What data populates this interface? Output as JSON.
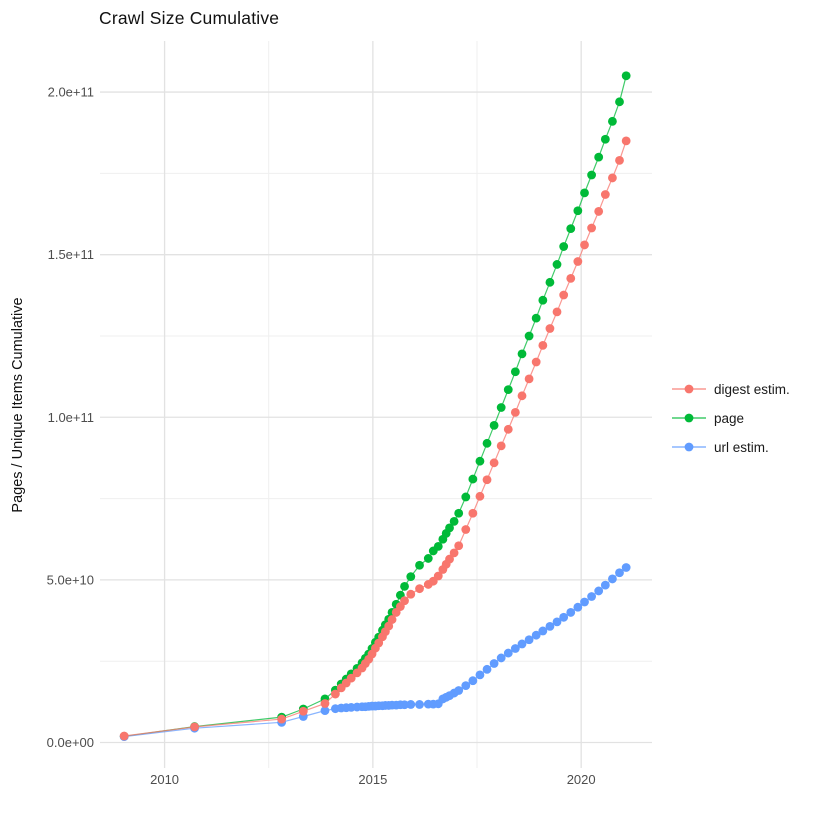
{
  "chart_data": {
    "type": "line",
    "title": "Crawl Size Cumulative",
    "xlabel": "",
    "ylabel": "Pages / Unique Items Cumulative",
    "values_unit": "pages (billions, 1e9)",
    "grid": true,
    "x_axis": {
      "major_ticks": [
        {
          "value": 2010,
          "label": "2010"
        },
        {
          "value": 2015,
          "label": "2015"
        },
        {
          "value": 2020,
          "label": "2020"
        }
      ],
      "minor_ticks": [
        2012.5,
        2017.5
      ],
      "range": [
        2008.45,
        2021.7
      ]
    },
    "y_axis": {
      "major_ticks": [
        {
          "value": 0,
          "label": "0.0e+00"
        },
        {
          "value": 50,
          "label": "5.0e+10"
        },
        {
          "value": 100,
          "label": "1.0e+11"
        },
        {
          "value": 150,
          "label": "1.5e+11"
        },
        {
          "value": 200,
          "label": "2.0e+11"
        }
      ],
      "minor_ticks": [
        25,
        75,
        125,
        175
      ],
      "range": [
        -7.84,
        215.7
      ]
    },
    "legend": {
      "position": "right",
      "entries": [
        {
          "label": "digest estim.",
          "color": "#F8766D"
        },
        {
          "label": "page",
          "color": "#00BA38"
        },
        {
          "label": "url estim.",
          "color": "#619CFF"
        }
      ]
    },
    "series": [
      {
        "name": "page",
        "color": "#00BA38",
        "points": [
          [
            2009.03,
            1.9
          ],
          [
            2010.72,
            4.9
          ],
          [
            2012.81,
            7.8
          ],
          [
            2013.33,
            10.3
          ],
          [
            2013.85,
            13.4
          ],
          [
            2014.1,
            16.1
          ],
          [
            2014.24,
            18.0
          ],
          [
            2014.36,
            19.5
          ],
          [
            2014.48,
            21.1
          ],
          [
            2014.62,
            22.8
          ],
          [
            2014.74,
            24.5
          ],
          [
            2014.82,
            25.9
          ],
          [
            2014.9,
            27.2
          ],
          [
            2014.98,
            28.9
          ],
          [
            2015.06,
            30.8
          ],
          [
            2015.14,
            32.4
          ],
          [
            2015.23,
            34.5
          ],
          [
            2015.3,
            36.2
          ],
          [
            2015.38,
            37.9
          ],
          [
            2015.46,
            40.0
          ],
          [
            2015.56,
            42.5
          ],
          [
            2015.66,
            45.3
          ],
          [
            2015.76,
            48.0
          ],
          [
            2015.91,
            51.0
          ],
          [
            2016.12,
            54.5
          ],
          [
            2016.33,
            56.6
          ],
          [
            2016.45,
            58.9
          ],
          [
            2016.57,
            60.3
          ],
          [
            2016.68,
            62.5
          ],
          [
            2016.76,
            64.3
          ],
          [
            2016.84,
            66.0
          ],
          [
            2016.95,
            68.0
          ],
          [
            2017.06,
            70.5
          ],
          [
            2017.23,
            75.5
          ],
          [
            2017.4,
            81.0
          ],
          [
            2017.57,
            86.5
          ],
          [
            2017.74,
            92.0
          ],
          [
            2017.91,
            97.5
          ],
          [
            2018.08,
            103.0
          ],
          [
            2018.25,
            108.5
          ],
          [
            2018.42,
            114.0
          ],
          [
            2018.58,
            119.5
          ],
          [
            2018.75,
            125.0
          ],
          [
            2018.92,
            130.5
          ],
          [
            2019.08,
            136.0
          ],
          [
            2019.25,
            141.5
          ],
          [
            2019.42,
            147.0
          ],
          [
            2019.58,
            152.5
          ],
          [
            2019.75,
            158.0
          ],
          [
            2019.92,
            163.5
          ],
          [
            2020.08,
            169.0
          ],
          [
            2020.25,
            174.5
          ],
          [
            2020.42,
            180.0
          ],
          [
            2020.58,
            185.5
          ],
          [
            2020.75,
            191.0
          ],
          [
            2020.92,
            197.0
          ],
          [
            2021.08,
            205.0
          ]
        ]
      },
      {
        "name": "url estim.",
        "color": "#619CFF",
        "points": [
          [
            2009.03,
            1.8
          ],
          [
            2010.72,
            4.4
          ],
          [
            2012.81,
            6.2
          ],
          [
            2013.33,
            8.0
          ],
          [
            2013.85,
            9.8
          ],
          [
            2014.1,
            10.4
          ],
          [
            2014.24,
            10.6
          ],
          [
            2014.36,
            10.7
          ],
          [
            2014.48,
            10.8
          ],
          [
            2014.62,
            10.9
          ],
          [
            2014.74,
            11.0
          ],
          [
            2014.82,
            11.0
          ],
          [
            2014.9,
            11.1
          ],
          [
            2014.98,
            11.2
          ],
          [
            2015.06,
            11.2
          ],
          [
            2015.14,
            11.3
          ],
          [
            2015.23,
            11.3
          ],
          [
            2015.3,
            11.4
          ],
          [
            2015.38,
            11.4
          ],
          [
            2015.46,
            11.5
          ],
          [
            2015.56,
            11.5
          ],
          [
            2015.66,
            11.6
          ],
          [
            2015.76,
            11.6
          ],
          [
            2015.91,
            11.7
          ],
          [
            2016.12,
            11.7
          ],
          [
            2016.33,
            11.8
          ],
          [
            2016.45,
            11.8
          ],
          [
            2016.57,
            11.9
          ],
          [
            2016.68,
            13.4
          ],
          [
            2016.76,
            13.9
          ],
          [
            2016.84,
            14.4
          ],
          [
            2016.95,
            15.2
          ],
          [
            2017.06,
            16.0
          ],
          [
            2017.23,
            17.5
          ],
          [
            2017.4,
            19.0
          ],
          [
            2017.57,
            20.8
          ],
          [
            2017.74,
            22.5
          ],
          [
            2017.91,
            24.3
          ],
          [
            2018.08,
            26.0
          ],
          [
            2018.25,
            27.5
          ],
          [
            2018.42,
            28.9
          ],
          [
            2018.58,
            30.3
          ],
          [
            2018.75,
            31.6
          ],
          [
            2018.92,
            33.0
          ],
          [
            2019.08,
            34.3
          ],
          [
            2019.25,
            35.7
          ],
          [
            2019.42,
            37.1
          ],
          [
            2019.58,
            38.5
          ],
          [
            2019.75,
            40.0
          ],
          [
            2019.92,
            41.6
          ],
          [
            2020.08,
            43.2
          ],
          [
            2020.25,
            44.9
          ],
          [
            2020.42,
            46.6
          ],
          [
            2020.58,
            48.4
          ],
          [
            2020.75,
            50.3
          ],
          [
            2020.92,
            52.2
          ],
          [
            2021.08,
            53.8
          ]
        ]
      },
      {
        "name": "digest estim.",
        "color": "#F8766D",
        "points": [
          [
            2009.03,
            2.0
          ],
          [
            2010.72,
            4.8
          ],
          [
            2012.81,
            7.2
          ],
          [
            2013.33,
            9.6
          ],
          [
            2013.85,
            12.0
          ],
          [
            2014.1,
            14.9
          ],
          [
            2014.24,
            16.8
          ],
          [
            2014.36,
            18.3
          ],
          [
            2014.48,
            19.8
          ],
          [
            2014.62,
            21.4
          ],
          [
            2014.74,
            22.9
          ],
          [
            2014.82,
            24.3
          ],
          [
            2014.9,
            25.6
          ],
          [
            2014.98,
            27.2
          ],
          [
            2015.06,
            29.0
          ],
          [
            2015.14,
            30.6
          ],
          [
            2015.23,
            32.5
          ],
          [
            2015.3,
            34.1
          ],
          [
            2015.38,
            35.8
          ],
          [
            2015.46,
            37.8
          ],
          [
            2015.56,
            40.0
          ],
          [
            2015.66,
            41.8
          ],
          [
            2015.76,
            43.6
          ],
          [
            2015.91,
            45.6
          ],
          [
            2016.12,
            47.3
          ],
          [
            2016.33,
            48.6
          ],
          [
            2016.45,
            49.6
          ],
          [
            2016.57,
            51.2
          ],
          [
            2016.68,
            53.2
          ],
          [
            2016.76,
            54.8
          ],
          [
            2016.84,
            56.4
          ],
          [
            2016.95,
            58.3
          ],
          [
            2017.06,
            60.5
          ],
          [
            2017.23,
            65.5
          ],
          [
            2017.4,
            70.5
          ],
          [
            2017.57,
            75.7
          ],
          [
            2017.74,
            80.8
          ],
          [
            2017.91,
            86.0
          ],
          [
            2018.08,
            91.2
          ],
          [
            2018.25,
            96.3
          ],
          [
            2018.42,
            101.5
          ],
          [
            2018.58,
            106.6
          ],
          [
            2018.75,
            111.8
          ],
          [
            2018.92,
            117.0
          ],
          [
            2019.08,
            122.1
          ],
          [
            2019.25,
            127.3
          ],
          [
            2019.42,
            132.4
          ],
          [
            2019.58,
            137.6
          ],
          [
            2019.75,
            142.7
          ],
          [
            2019.92,
            147.9
          ],
          [
            2020.08,
            153.0
          ],
          [
            2020.25,
            158.2
          ],
          [
            2020.42,
            163.3
          ],
          [
            2020.58,
            168.5
          ],
          [
            2020.75,
            173.6
          ],
          [
            2020.92,
            179.0
          ],
          [
            2021.08,
            185.0
          ]
        ]
      }
    ]
  }
}
